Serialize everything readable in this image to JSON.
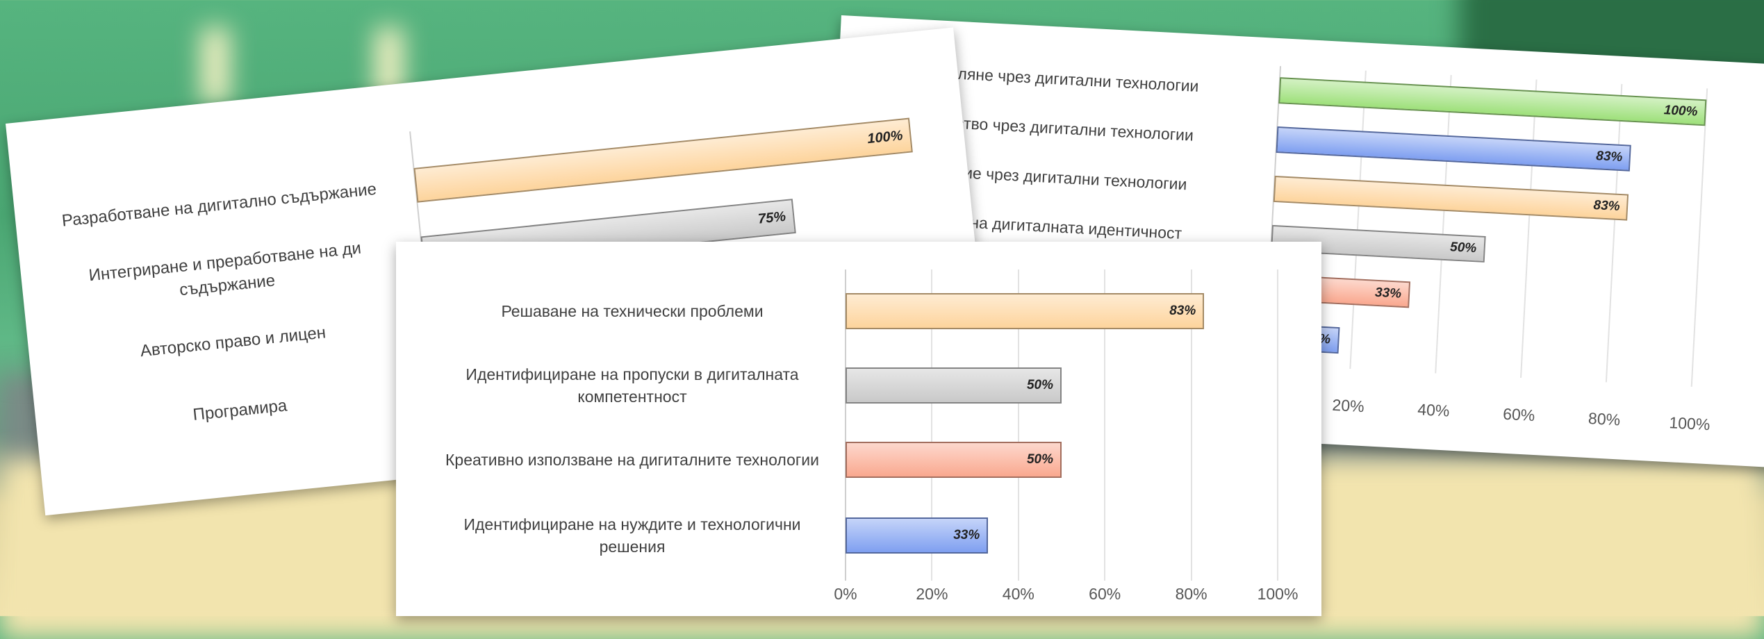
{
  "chart_data": [
    {
      "type": "bar",
      "orientation": "horizontal",
      "categories": [
        "Разработване на дигитално съдържание",
        "Интегриране и преработване на ди съдържание",
        "Авторско право и лицен",
        "Програмира"
      ],
      "values": [
        100,
        75,
        null,
        null
      ],
      "value_labels": [
        "100%",
        "75%",
        null,
        null
      ],
      "colors": [
        "#fdd49c",
        "#c9c9c9",
        null,
        null
      ],
      "xlim": [
        0,
        100
      ]
    },
    {
      "type": "bar",
      "orientation": "horizontal",
      "categories": [
        "Споделяне чрез дигитални технологии",
        "дничество чрез дигитални технологии",
        "действие чрез дигитални технологии",
        "вление на дигиталната идентичност",
        null,
        null
      ],
      "values": [
        100,
        83,
        83,
        50,
        33,
        17
      ],
      "value_labels": [
        "100%",
        "83%",
        "83%",
        "50%",
        "33%",
        "%"
      ],
      "colors": [
        "#9ee07a",
        "#7f9ff0",
        "#fdd49c",
        "#c9c9c9",
        "#f9a88f",
        "#7f9ff0"
      ],
      "xlim": [
        0,
        100
      ],
      "xticks": [
        {
          "value": 20,
          "label": "20%"
        },
        {
          "value": 40,
          "label": "40%"
        },
        {
          "value": 60,
          "label": "60%"
        },
        {
          "value": 80,
          "label": "80%"
        },
        {
          "value": 100,
          "label": "100%"
        }
      ],
      "grid": true
    },
    {
      "type": "bar",
      "orientation": "horizontal",
      "categories": [
        "Решаване на технически проблеми",
        "Идентифициране на пропуски в дигиталната компетентност",
        "Креативно използване на дигиталните технологии",
        "Идентифициране на нуждите  и технологични решения"
      ],
      "values": [
        83,
        50,
        50,
        33
      ],
      "value_labels": [
        "83%",
        "50%",
        "50%",
        "33%"
      ],
      "colors": [
        "#fdd49c",
        "#c9c9c9",
        "#f9a88f",
        "#7f9ff0"
      ],
      "xlim": [
        0,
        100
      ],
      "xticks": [
        {
          "value": 0,
          "label": "0%"
        },
        {
          "value": 20,
          "label": "20%"
        },
        {
          "value": 40,
          "label": "40%"
        },
        {
          "value": 60,
          "label": "60%"
        },
        {
          "value": 80,
          "label": "80%"
        },
        {
          "value": 100,
          "label": "100%"
        }
      ],
      "grid": true
    }
  ]
}
